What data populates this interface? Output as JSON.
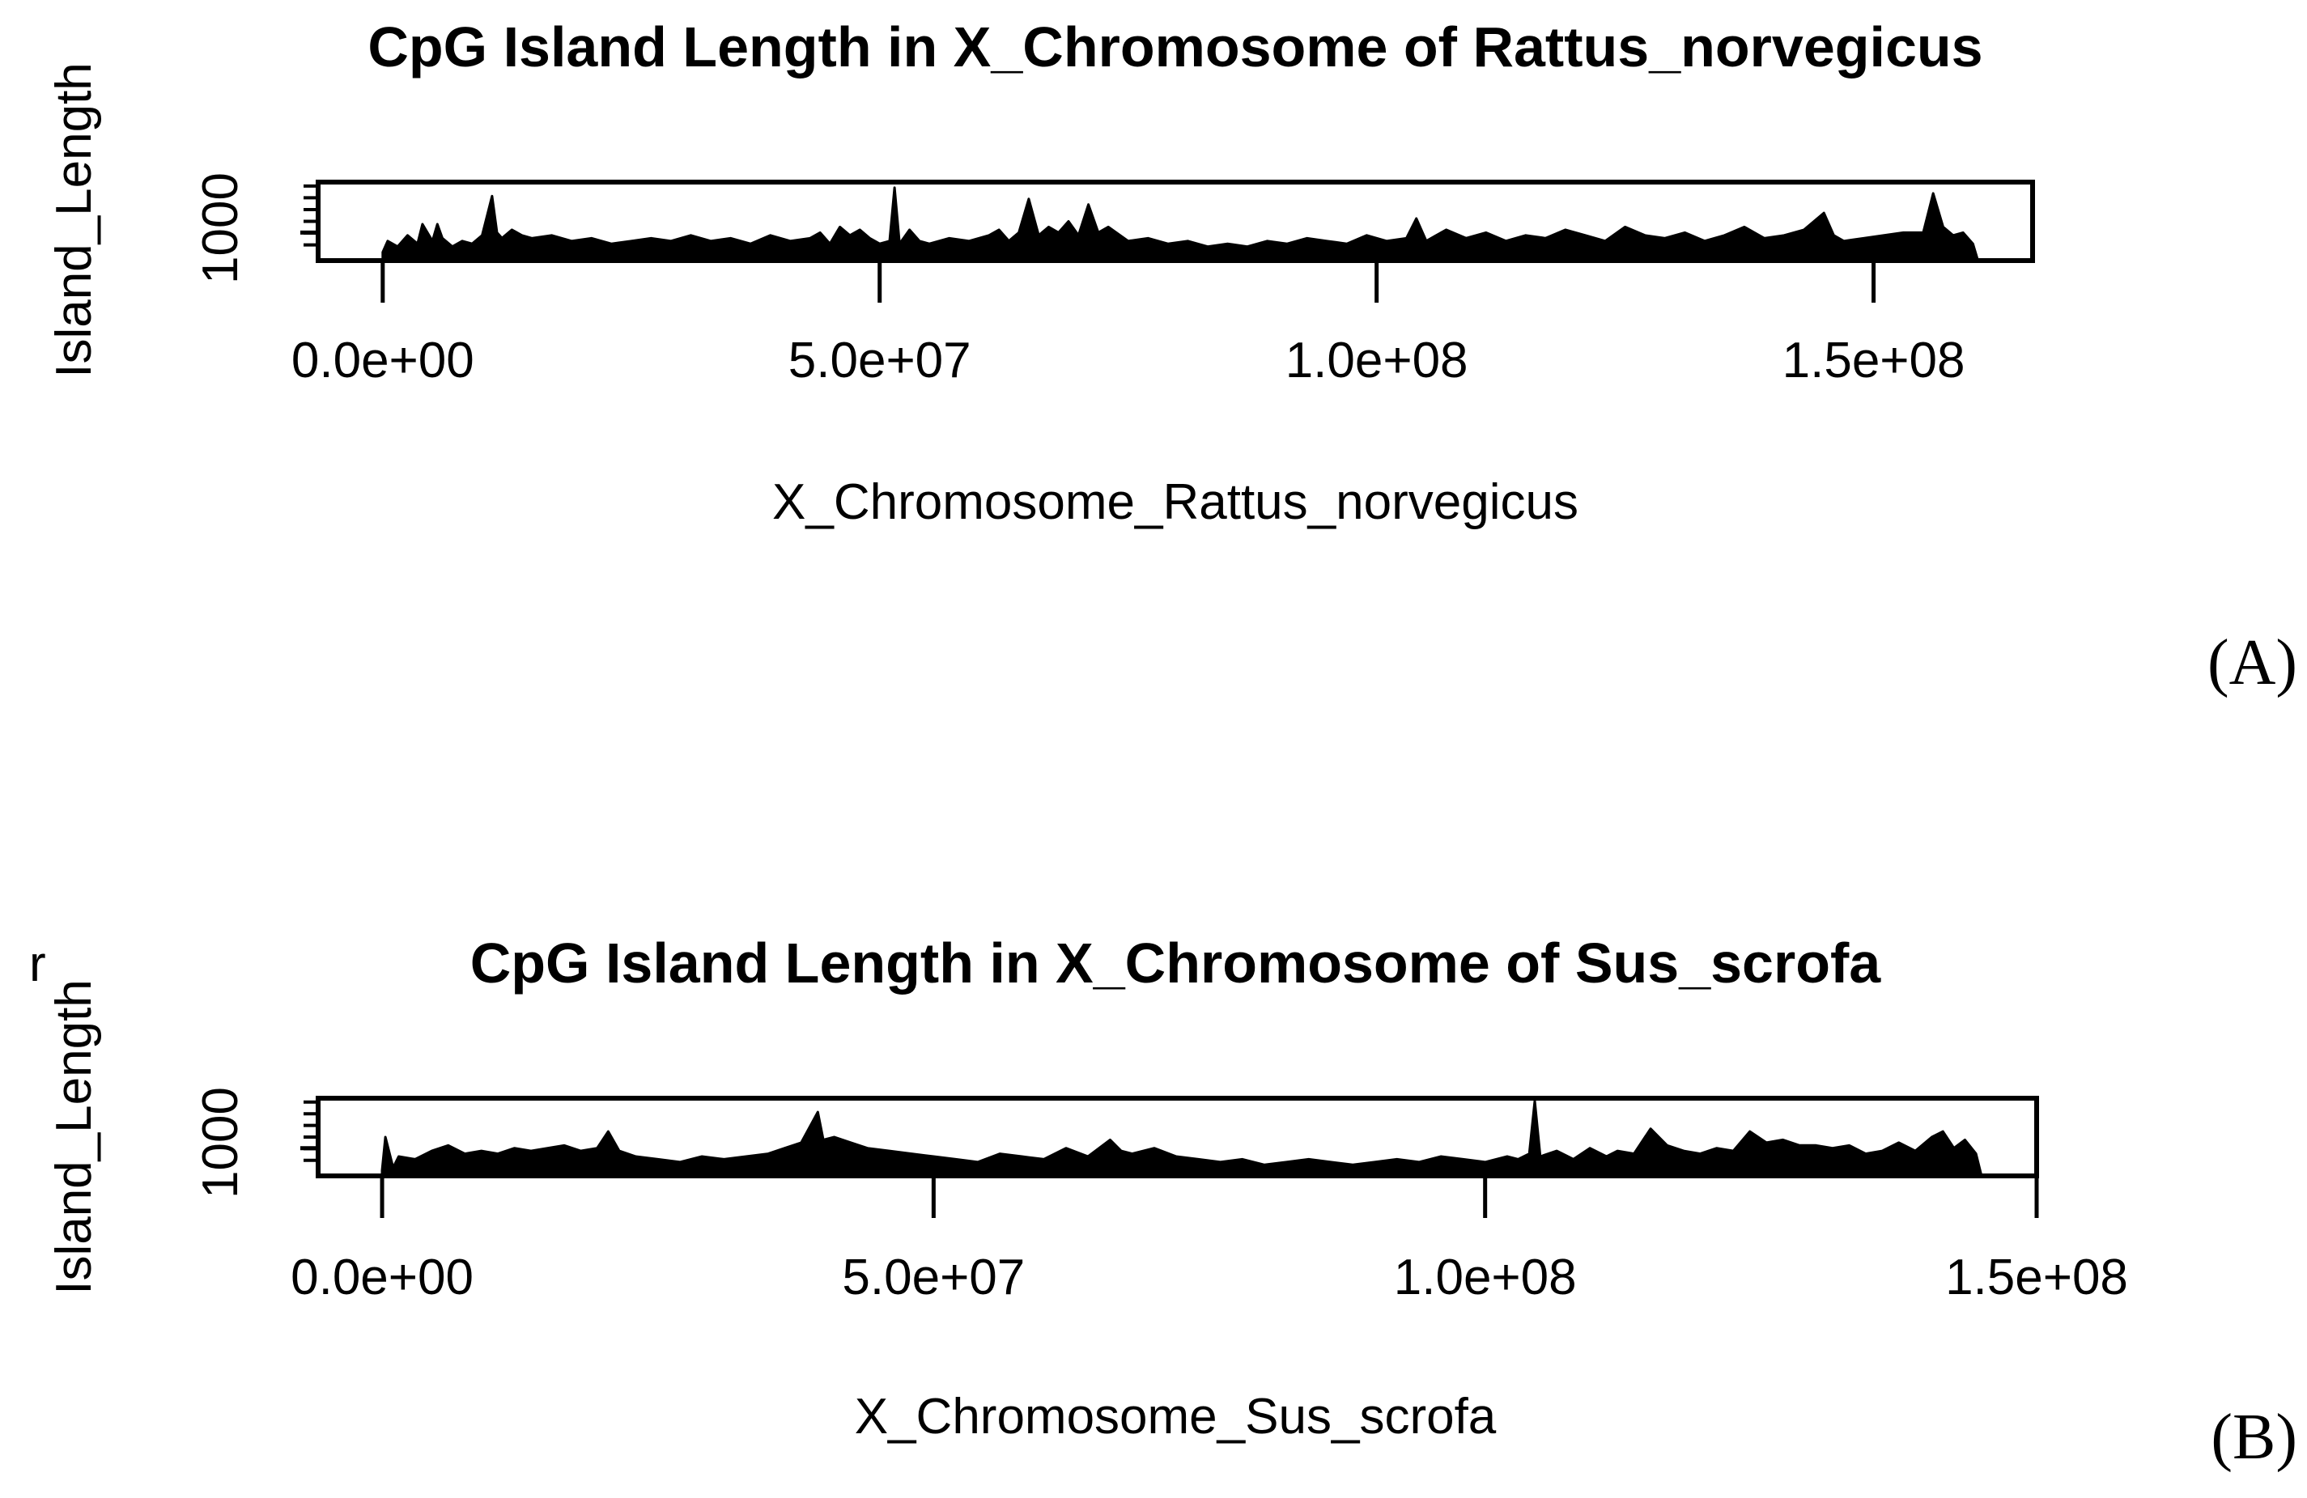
{
  "figure": {
    "stray_mark": "r",
    "panel_labels": [
      "(A)",
      "(B)"
    ]
  },
  "chart_data": [
    {
      "type": "area",
      "title": "CpG Island Length in X_Chromosome of Rattus_norvegicus",
      "xlabel": "X_Chromosome_Rattus_norvegicus",
      "ylabel": "Island_Length",
      "xlim": [
        -6500000,
        166000000
      ],
      "ylim": [
        0,
        2800
      ],
      "x_ticks": [
        0,
        50000000,
        100000000,
        150000000
      ],
      "x_tick_labels": [
        "0.0e+00",
        "5.0e+07",
        "1.0e+08",
        "1.5e+08"
      ],
      "y_ticks": [
        1000
      ],
      "y_tick_labels": [
        "1000"
      ],
      "grid": false,
      "color": "#000000",
      "series": [
        {
          "x": [
            0,
            500000,
            1500000,
            2500000,
            3500000,
            4000000,
            5000000,
            5500000,
            6000000,
            7000000,
            8000000,
            9000000,
            10000000,
            11000000,
            11500000,
            12000000,
            13000000,
            14000000,
            15000000,
            17000000,
            19000000,
            21000000,
            23000000,
            25000000,
            27000000,
            29000000,
            31000000,
            33000000,
            35000000,
            37000000,
            39000000,
            41000000,
            43000000,
            44000000,
            45000000,
            46000000,
            47000000,
            48000000,
            49000000,
            50000000,
            51000000,
            51500000,
            52000000,
            53000000,
            54000000,
            55000000,
            57000000,
            59000000,
            61000000,
            62000000,
            63000000,
            64000000,
            65000000,
            66000000,
            67000000,
            68000000,
            69000000,
            70000000,
            71000000,
            72000000,
            73000000,
            75000000,
            77000000,
            79000000,
            81000000,
            83000000,
            85000000,
            87000000,
            89000000,
            91000000,
            93000000,
            95000000,
            97000000,
            99000000,
            101000000,
            103000000,
            104000000,
            105000000,
            106000000,
            107000000,
            109000000,
            111000000,
            113000000,
            115000000,
            117000000,
            119000000,
            121000000,
            123000000,
            125000000,
            127000000,
            129000000,
            131000000,
            133000000,
            135000000,
            137000000,
            139000000,
            141000000,
            143000000,
            145000000,
            146000000,
            147000000,
            149000000,
            151000000,
            153000000,
            155000000,
            156000000,
            157000000,
            158000000,
            159000000,
            160000000,
            160500000
          ],
          "y": [
            300,
            700,
            500,
            900,
            600,
            1300,
            700,
            1300,
            800,
            500,
            700,
            600,
            900,
            2300,
            1000,
            800,
            1100,
            900,
            800,
            900,
            700,
            800,
            600,
            700,
            800,
            700,
            900,
            700,
            800,
            600,
            900,
            700,
            800,
            1000,
            600,
            1200,
            900,
            1100,
            800,
            600,
            700,
            2600,
            600,
            1100,
            700,
            600,
            800,
            700,
            900,
            1100,
            700,
            1000,
            2200,
            900,
            1200,
            1000,
            1400,
            900,
            2000,
            1000,
            1200,
            700,
            800,
            600,
            700,
            500,
            600,
            500,
            700,
            600,
            800,
            700,
            600,
            900,
            700,
            800,
            1500,
            700,
            900,
            1100,
            800,
            1000,
            700,
            900,
            800,
            1100,
            900,
            700,
            1200,
            900,
            800,
            1000,
            700,
            900,
            1200,
            800,
            900,
            1100,
            1700,
            900,
            700,
            800,
            900,
            1000,
            1000,
            2400,
            1200,
            900,
            1000,
            600,
            0
          ]
        }
      ]
    },
    {
      "type": "area",
      "title": "CpG Island Length in X_Chromosome of Sus_scrofa",
      "xlabel": "X_Chromosome_Sus_scrofa",
      "ylabel": "Island_Length",
      "xlim": [
        -5800000,
        150000000
      ],
      "ylim": [
        0,
        2800
      ],
      "x_ticks": [
        0,
        50000000,
        100000000,
        150000000
      ],
      "x_tick_labels": [
        "0.0e+00",
        "5.0e+07",
        "1.0e+08",
        "1.5e+08"
      ],
      "y_ticks": [
        1000
      ],
      "y_tick_labels": [
        "1000"
      ],
      "grid": false,
      "color": "#000000",
      "series": [
        {
          "x": [
            0,
            300000,
            1000000,
            1500000,
            3000000,
            4500000,
            6000000,
            7500000,
            9000000,
            10500000,
            12000000,
            13500000,
            15000000,
            16500000,
            18000000,
            19500000,
            20500000,
            21500000,
            23000000,
            25000000,
            27000000,
            29000000,
            31000000,
            33000000,
            35000000,
            36500000,
            38000000,
            39500000,
            40000000,
            41000000,
            42500000,
            44000000,
            46000000,
            48000000,
            50000000,
            52000000,
            54000000,
            56000000,
            58000000,
            60000000,
            62000000,
            64000000,
            66000000,
            67000000,
            68000000,
            70000000,
            72000000,
            74000000,
            76000000,
            78000000,
            80000000,
            82000000,
            84000000,
            86000000,
            88000000,
            90000000,
            92000000,
            94000000,
            96000000,
            98000000,
            100000000,
            102000000,
            103000000,
            104000000,
            104500000,
            105000000,
            106500000,
            108000000,
            109500000,
            111000000,
            112000000,
            113500000,
            115000000,
            116500000,
            118000000,
            119500000,
            121000000,
            122500000,
            124000000,
            125500000,
            127000000,
            128500000,
            130000000,
            131500000,
            133000000,
            134500000,
            136000000,
            137500000,
            139000000,
            140500000,
            141500000,
            142500000,
            143500000,
            144500000,
            145000000
          ],
          "y": [
            200,
            1400,
            300,
            700,
            600,
            900,
            1100,
            800,
            900,
            800,
            1000,
            900,
            1000,
            1100,
            900,
            1000,
            1600,
            900,
            700,
            600,
            500,
            700,
            600,
            700,
            800,
            1000,
            1200,
            2300,
            1300,
            1400,
            1200,
            1000,
            900,
            800,
            700,
            600,
            500,
            800,
            700,
            600,
            1000,
            700,
            1300,
            900,
            800,
            1000,
            700,
            600,
            500,
            600,
            400,
            500,
            600,
            500,
            400,
            500,
            600,
            500,
            700,
            600,
            500,
            700,
            600,
            800,
            2700,
            700,
            900,
            600,
            1000,
            700,
            900,
            800,
            1700,
            1100,
            900,
            800,
            1000,
            900,
            1600,
            1200,
            1300,
            1100,
            1100,
            1000,
            1100,
            800,
            900,
            1200,
            900,
            1400,
            1600,
            1000,
            1300,
            800,
            0
          ]
        }
      ]
    }
  ]
}
